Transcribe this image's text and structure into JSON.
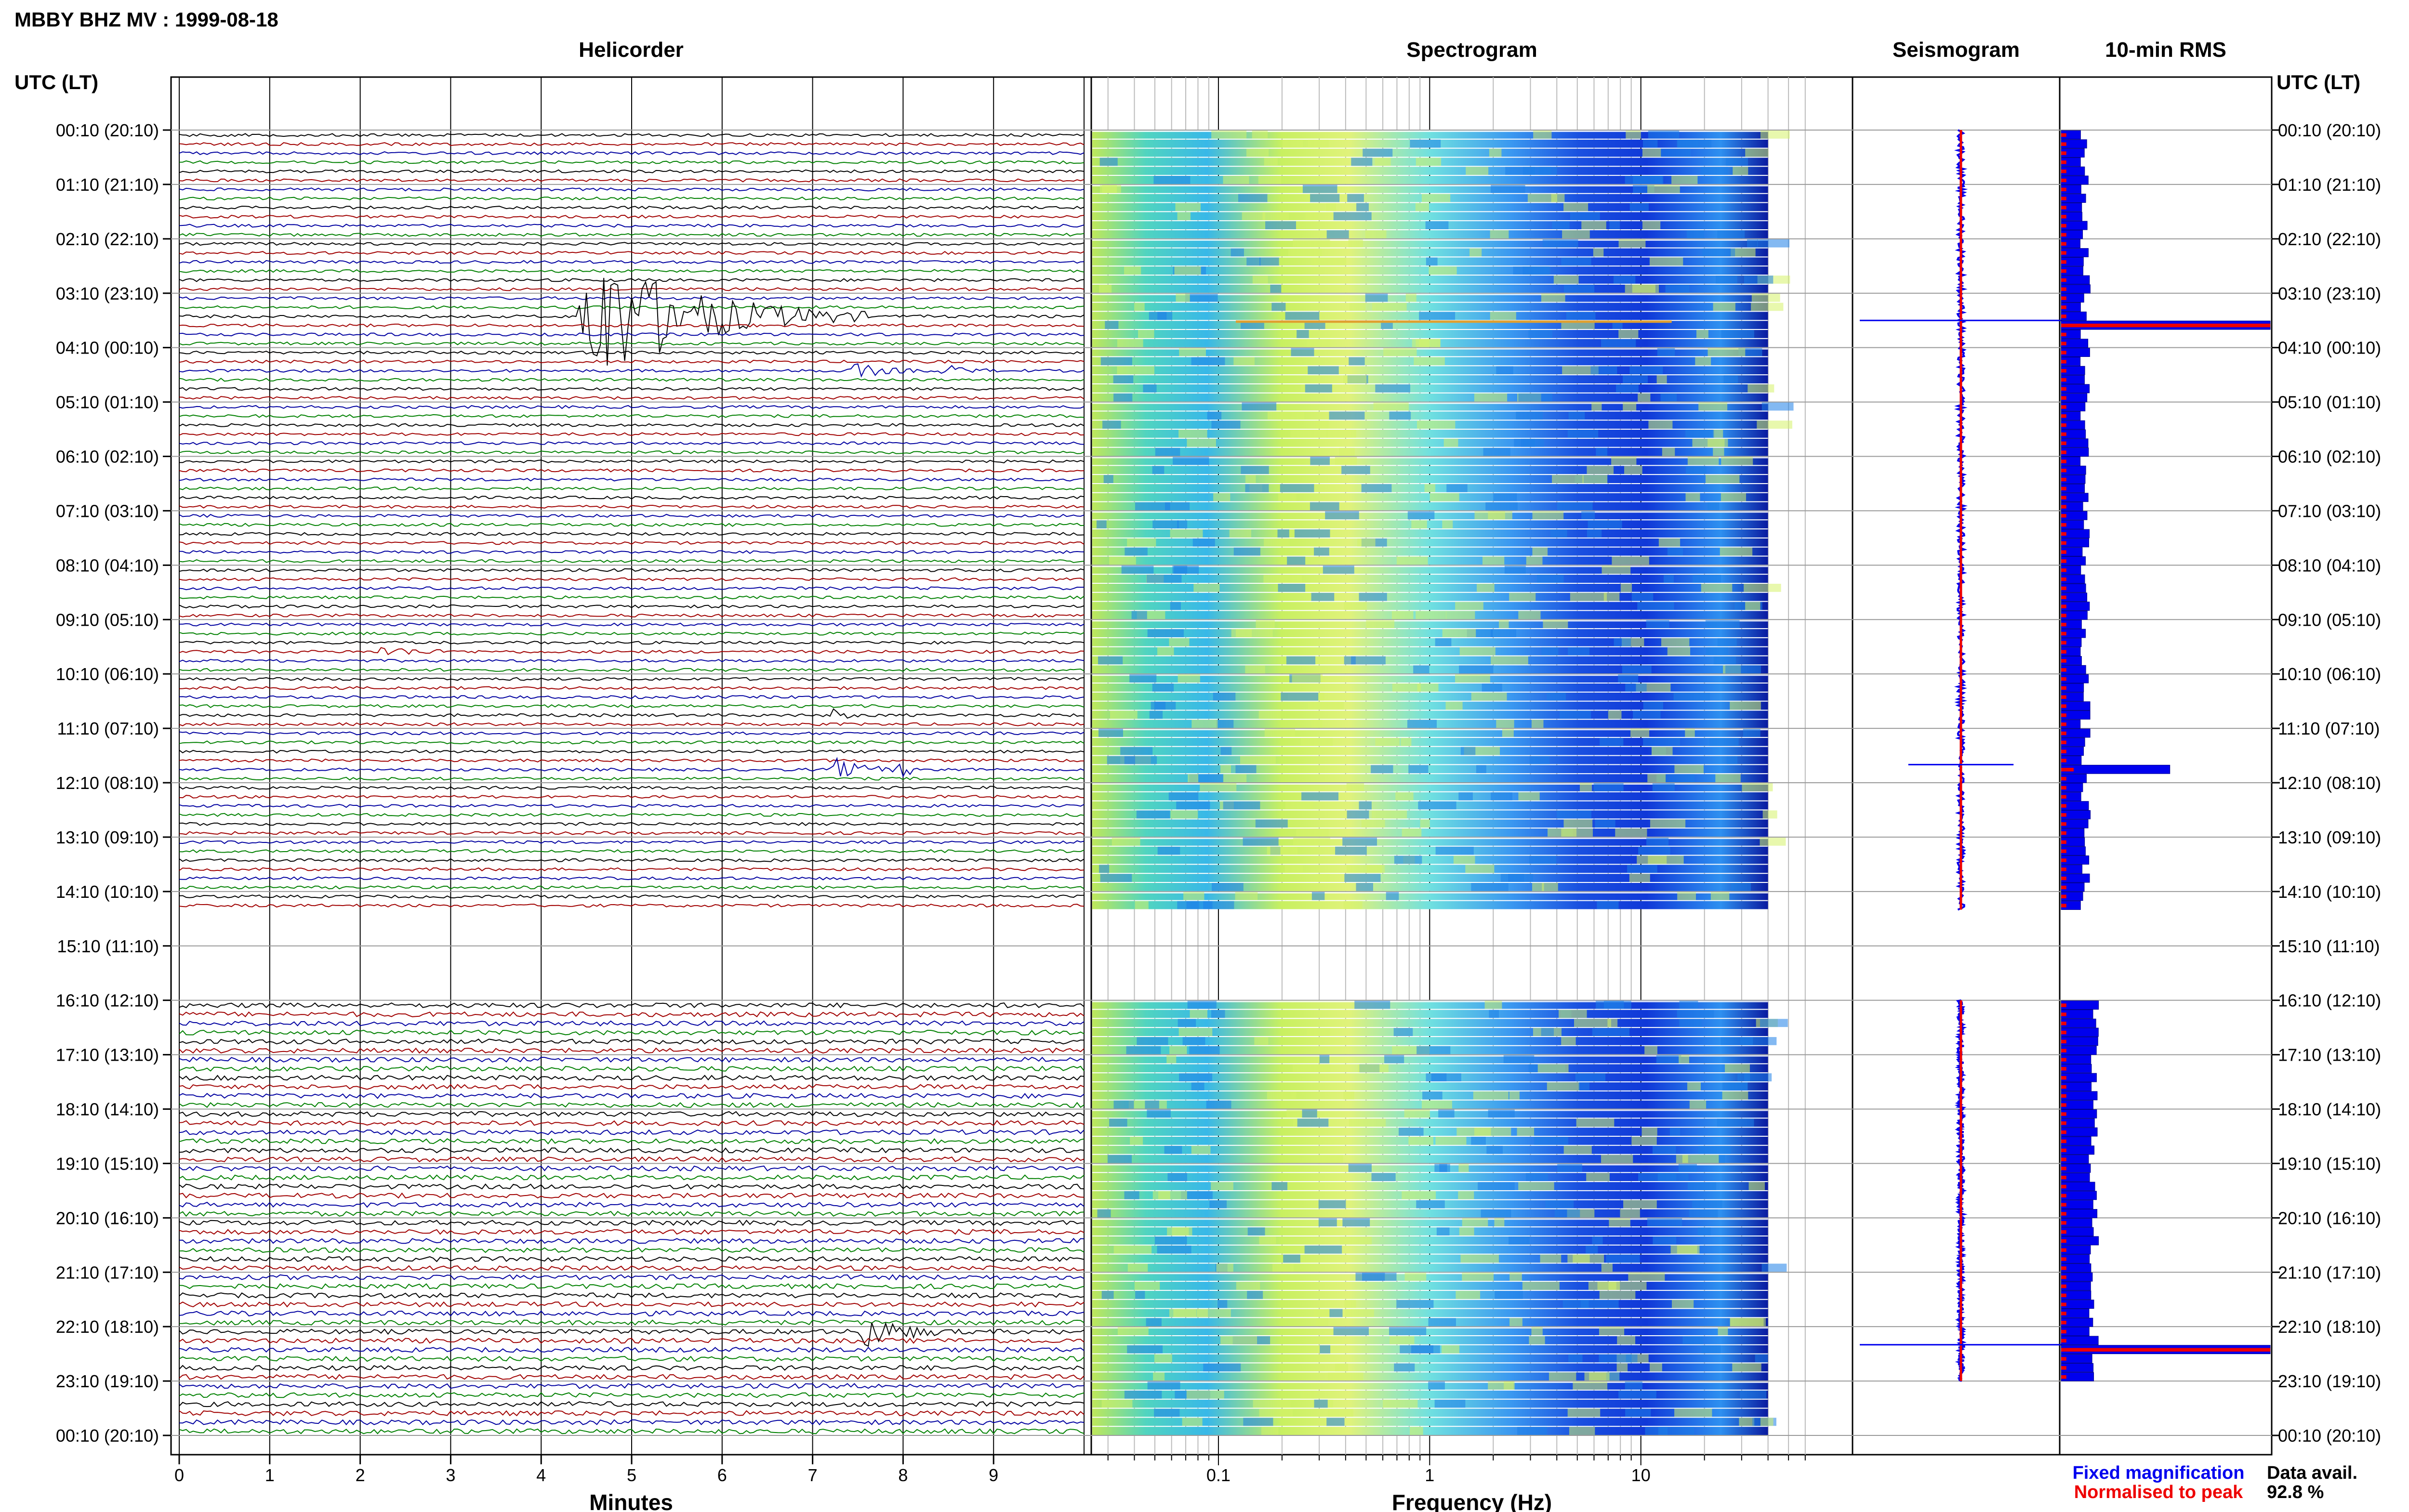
{
  "header": {
    "title": "MBBY BHZ MV : 1999-08-18",
    "utc_lt_left": "UTC (LT)",
    "utc_lt_right": "UTC (LT)"
  },
  "panels": {
    "helicorder": "Helicorder",
    "spectrogram": "Spectrogram",
    "seismogram": "Seismogram",
    "rms": "10-min RMS"
  },
  "axes": {
    "minutes_label": "Minutes",
    "frequency_label": "Frequency (Hz)",
    "minute_ticks": [
      "0",
      "1",
      "2",
      "3",
      "4",
      "5",
      "6",
      "7",
      "8",
      "9"
    ],
    "frequency_ticks": [
      "0.1",
      "1",
      "10"
    ]
  },
  "time_labels": [
    "00:10 (20:10)",
    "01:10 (21:10)",
    "02:10 (22:10)",
    "03:10 (23:10)",
    "04:10 (00:10)",
    "05:10 (01:10)",
    "06:10 (02:10)",
    "07:10 (03:10)",
    "08:10 (04:10)",
    "09:10 (05:10)",
    "10:10 (06:10)",
    "11:10 (07:10)",
    "12:10 (08:10)",
    "13:10 (09:10)",
    "14:10 (10:10)",
    "15:10 (11:10)",
    "16:10 (12:10)",
    "17:10 (13:10)",
    "18:10 (14:10)",
    "19:10 (15:10)",
    "20:10 (16:10)",
    "21:10 (17:10)",
    "22:10 (18:10)",
    "23:10 (19:10)",
    "00:10 (20:10)"
  ],
  "legend": {
    "fixed": "Fixed magnification",
    "normalised": "Normalised to peak",
    "fixed_color": "#0000ee",
    "normalised_color": "#ee0000"
  },
  "availability": {
    "label": "Data avail.",
    "value": "92.8 %"
  },
  "colors": {
    "trace_cycle": [
      "#000000",
      "#a00000",
      "#0000a0",
      "#008000"
    ],
    "rms_fixed": "#0000ee",
    "rms_normalised": "#ee0000"
  },
  "chart_data": {
    "type": "helicorder",
    "x_minutes": [
      0,
      10
    ],
    "x_frequency_hz": [
      0.025,
      40
    ],
    "frequency_scale": "log",
    "rows": 144,
    "row_duration_min": 10,
    "data_gap_rows": [
      86,
      96
    ],
    "events": [
      {
        "row": 20,
        "minute": 4.4,
        "amplitude": 18,
        "duration_min": 3.2,
        "color_index": 0
      },
      {
        "row": 26,
        "minute": 7.4,
        "amplitude": 2.2,
        "duration_min": 0.8,
        "color_index": 2
      },
      {
        "row": 26,
        "minute": 8.4,
        "amplitude": 1.6,
        "duration_min": 0.6,
        "color_index": 2
      },
      {
        "row": 57,
        "minute": 2.2,
        "amplitude": 1.3,
        "duration_min": 1.0,
        "color_index": 1
      },
      {
        "row": 64,
        "minute": 7.2,
        "amplitude": 1.5,
        "duration_min": 0.4,
        "color_index": 1
      },
      {
        "row": 70,
        "minute": 7.2,
        "amplitude": 2.6,
        "duration_min": 0.9,
        "color_index": 2
      },
      {
        "row": 70,
        "minute": 7.9,
        "amplitude": 1.8,
        "duration_min": 0.5,
        "color_index": 2
      },
      {
        "row": 132,
        "minute": 7.5,
        "amplitude": 4.5,
        "duration_min": 1.1,
        "color_index": 3
      }
    ],
    "rms_fixed_peaks": [
      {
        "row": 21,
        "value": 1.0
      },
      {
        "row": 70,
        "value": 0.52
      },
      {
        "row": 134,
        "value": 1.0
      }
    ],
    "data_availability_percent": 92.8
  }
}
